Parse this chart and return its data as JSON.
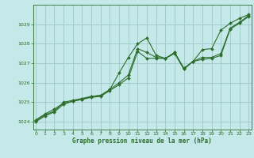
{
  "bg_color": "#c5e8e8",
  "grid_color": "#9dc8c8",
  "line_color": "#2d6e2d",
  "marker_color": "#2d6e2d",
  "xlabel": "Graphe pression niveau de la mer (hPa)",
  "xlim": [
    -0.3,
    23.3
  ],
  "ylim": [
    1023.6,
    1030.0
  ],
  "yticks": [
    1024,
    1025,
    1026,
    1027,
    1028,
    1029
  ],
  "xticks": [
    0,
    1,
    2,
    3,
    4,
    5,
    6,
    7,
    8,
    9,
    10,
    11,
    12,
    13,
    14,
    15,
    16,
    17,
    18,
    19,
    20,
    21,
    22,
    23
  ],
  "series": [
    {
      "x": [
        0,
        1,
        2,
        3,
        4,
        5,
        6,
        7,
        8,
        9,
        10,
        11,
        12,
        13,
        14,
        15,
        16,
        17,
        18,
        19,
        20,
        21,
        22,
        23
      ],
      "y": [
        1024.1,
        1024.4,
        1024.65,
        1024.95,
        1025.05,
        1025.15,
        1025.3,
        1025.35,
        1025.65,
        1026.5,
        1027.3,
        1028.0,
        1028.3,
        1027.4,
        1027.25,
        1027.5,
        1026.7,
        1027.1,
        1027.7,
        1027.75,
        1028.7,
        1029.05,
        1029.3,
        1029.5
      ]
    },
    {
      "x": [
        0,
        1,
        2,
        3,
        4,
        5,
        6,
        7,
        8,
        9,
        10,
        11,
        12,
        13,
        14,
        15,
        16,
        17,
        18,
        19,
        20,
        21,
        22,
        23
      ],
      "y": [
        1024.05,
        1024.35,
        1024.55,
        1025.0,
        1025.1,
        1025.2,
        1025.3,
        1025.35,
        1025.65,
        1026.0,
        1026.4,
        1027.75,
        1027.55,
        1027.3,
        1027.25,
        1027.55,
        1026.75,
        1027.1,
        1027.3,
        1027.3,
        1027.5,
        1028.8,
        1029.1,
        1029.45
      ]
    },
    {
      "x": [
        0,
        1,
        2,
        3,
        4,
        5,
        6,
        7,
        8,
        9,
        10,
        11,
        12,
        13,
        14,
        15,
        16,
        17,
        18,
        19,
        20,
        21,
        22,
        23
      ],
      "y": [
        1024.0,
        1024.3,
        1024.5,
        1024.9,
        1025.05,
        1025.15,
        1025.25,
        1025.3,
        1025.6,
        1025.9,
        1026.25,
        1027.6,
        1027.25,
        1027.25,
        1027.25,
        1027.55,
        1026.7,
        1027.1,
        1027.2,
        1027.25,
        1027.4,
        1028.75,
        1029.05,
        1029.4
      ]
    }
  ]
}
